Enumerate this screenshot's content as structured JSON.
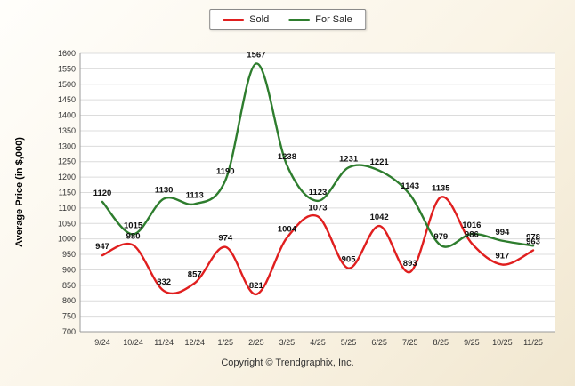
{
  "ylabel": "Average Price (in $,000)",
  "footer": {
    "copyright": "Copyright © Trendgraphix, Inc."
  },
  "chart_data": {
    "type": "line",
    "title": "",
    "xlabel": "",
    "ylabel": "Average Price (in $,000)",
    "categories": [
      "9/24",
      "10/24",
      "11/24",
      "12/24",
      "1/25",
      "2/25",
      "3/25",
      "4/25",
      "5/25",
      "6/25",
      "7/25",
      "8/25",
      "9/25",
      "10/25",
      "11/25"
    ],
    "series": [
      {
        "name": "Sold",
        "color": "#e01f1f",
        "values": [
          947,
          980,
          832,
          857,
          974,
          821,
          1004,
          1073,
          905,
          1042,
          893,
          1135,
          986,
          917,
          963
        ]
      },
      {
        "name": "For Sale",
        "color": "#2e7d2e",
        "values": [
          1120,
          1015,
          1130,
          1113,
          1190,
          1567,
          1238,
          1123,
          1231,
          1221,
          1143,
          979,
          1016,
          994,
          978
        ]
      }
    ],
    "ylim": [
      700,
      1600
    ],
    "ytick_step": 50,
    "grid": true,
    "legend_position": "top",
    "line_style": "smooth",
    "data_labels": true
  }
}
